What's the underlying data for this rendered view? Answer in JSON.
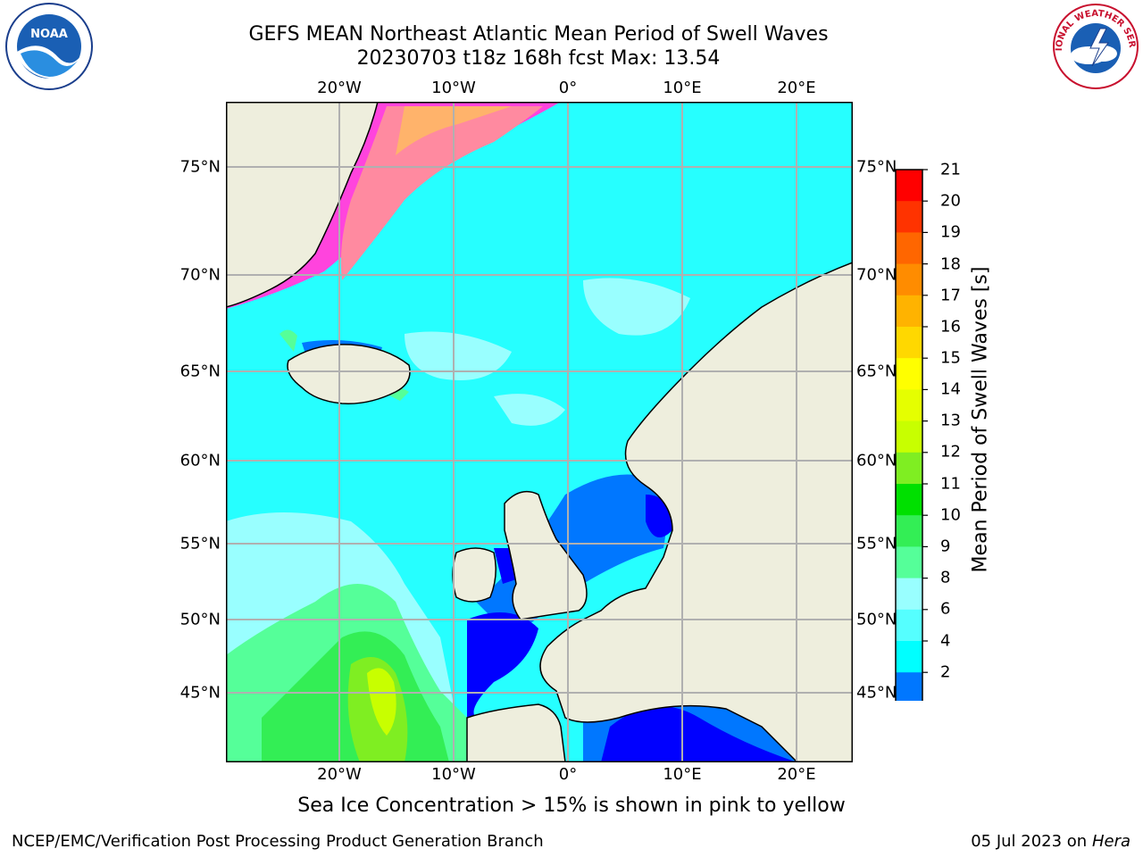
{
  "title": {
    "line1": "GEFS MEAN Northeast Atlantic Mean Period of Swell Waves",
    "line2": "20230703 t18z 168h fcst   Max: 13.54"
  },
  "logos": {
    "left": "NOAA",
    "right": "NATIONAL WEATHER SERVICE"
  },
  "map": {
    "lon_labels": [
      "20°W",
      "10°W",
      "0°",
      "10°E",
      "20°E"
    ],
    "lat_labels_left": [
      "75°N",
      "70°N",
      "65°N",
      "60°N",
      "55°N",
      "50°N",
      "45°N"
    ],
    "lat_labels_right": [
      "75°N",
      "70°N",
      "65°N",
      "60°N",
      "55°N",
      "50°N",
      "45°N"
    ],
    "colors": {
      "ocean_base": "#26ffff",
      "land": "#eeeedd",
      "ice_pink": "#ff44dd",
      "grid": "#b0b0b0"
    }
  },
  "colorbar": {
    "label": "Mean Period of Swell Waves [s]",
    "ticks": [
      "21",
      "20",
      "19",
      "18",
      "17",
      "16",
      "15",
      "14",
      "13",
      "12",
      "11",
      "10",
      "9",
      "8",
      "6",
      "4",
      "2"
    ],
    "colors": [
      "#ff0000",
      "#ff3300",
      "#ff6600",
      "#ff8c00",
      "#ffb300",
      "#ffd800",
      "#ffff00",
      "#e5ff00",
      "#c8ff00",
      "#7fee22",
      "#00e000",
      "#33ee55",
      "#55ff99",
      "#99ffff",
      "#55ffff",
      "#00ffff",
      "#0077ff",
      "#0000ff"
    ]
  },
  "subtitle": "Sea Ice Concentration > 15% is shown in pink to yellow",
  "footer": {
    "left": "NCEP/EMC/Verification Post Processing Product Generation Branch",
    "right_date": "05 Jul 2023 on",
    "right_machine": "Hera"
  }
}
